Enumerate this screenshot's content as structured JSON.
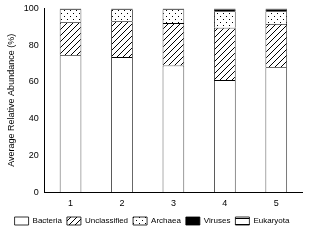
{
  "chart_data": {
    "type": "bar",
    "stacked": true,
    "y_label": "Average Relative Abundance (%)",
    "categories": [
      "1",
      "2",
      "3",
      "4",
      "5"
    ],
    "series": [
      {
        "name": "Bacteria",
        "color": "#ffffff",
        "values": [
          74.5,
          73.5,
          69,
          61,
          68
        ]
      },
      {
        "name": "Unclassified",
        "color": "#ffffff",
        "values": [
          18,
          19.5,
          23,
          28.5,
          23.5
        ]
      },
      {
        "name": "Archaea",
        "color": "#ffffff",
        "values": [
          7,
          6.5,
          7.5,
          9,
          7
        ]
      },
      {
        "name": "Viruses",
        "color": "#000000",
        "values": [
          0.2,
          0.2,
          0.2,
          1,
          1
        ]
      },
      {
        "name": "Eukaryota",
        "color": "#ffffff",
        "values": [
          0.3,
          0.3,
          0.3,
          0.5,
          0.5
        ]
      }
    ],
    "ylim": [
      0,
      100
    ],
    "yticks": [
      0,
      20,
      40,
      60,
      80,
      100
    ],
    "grid": false,
    "legend": "bottom"
  }
}
